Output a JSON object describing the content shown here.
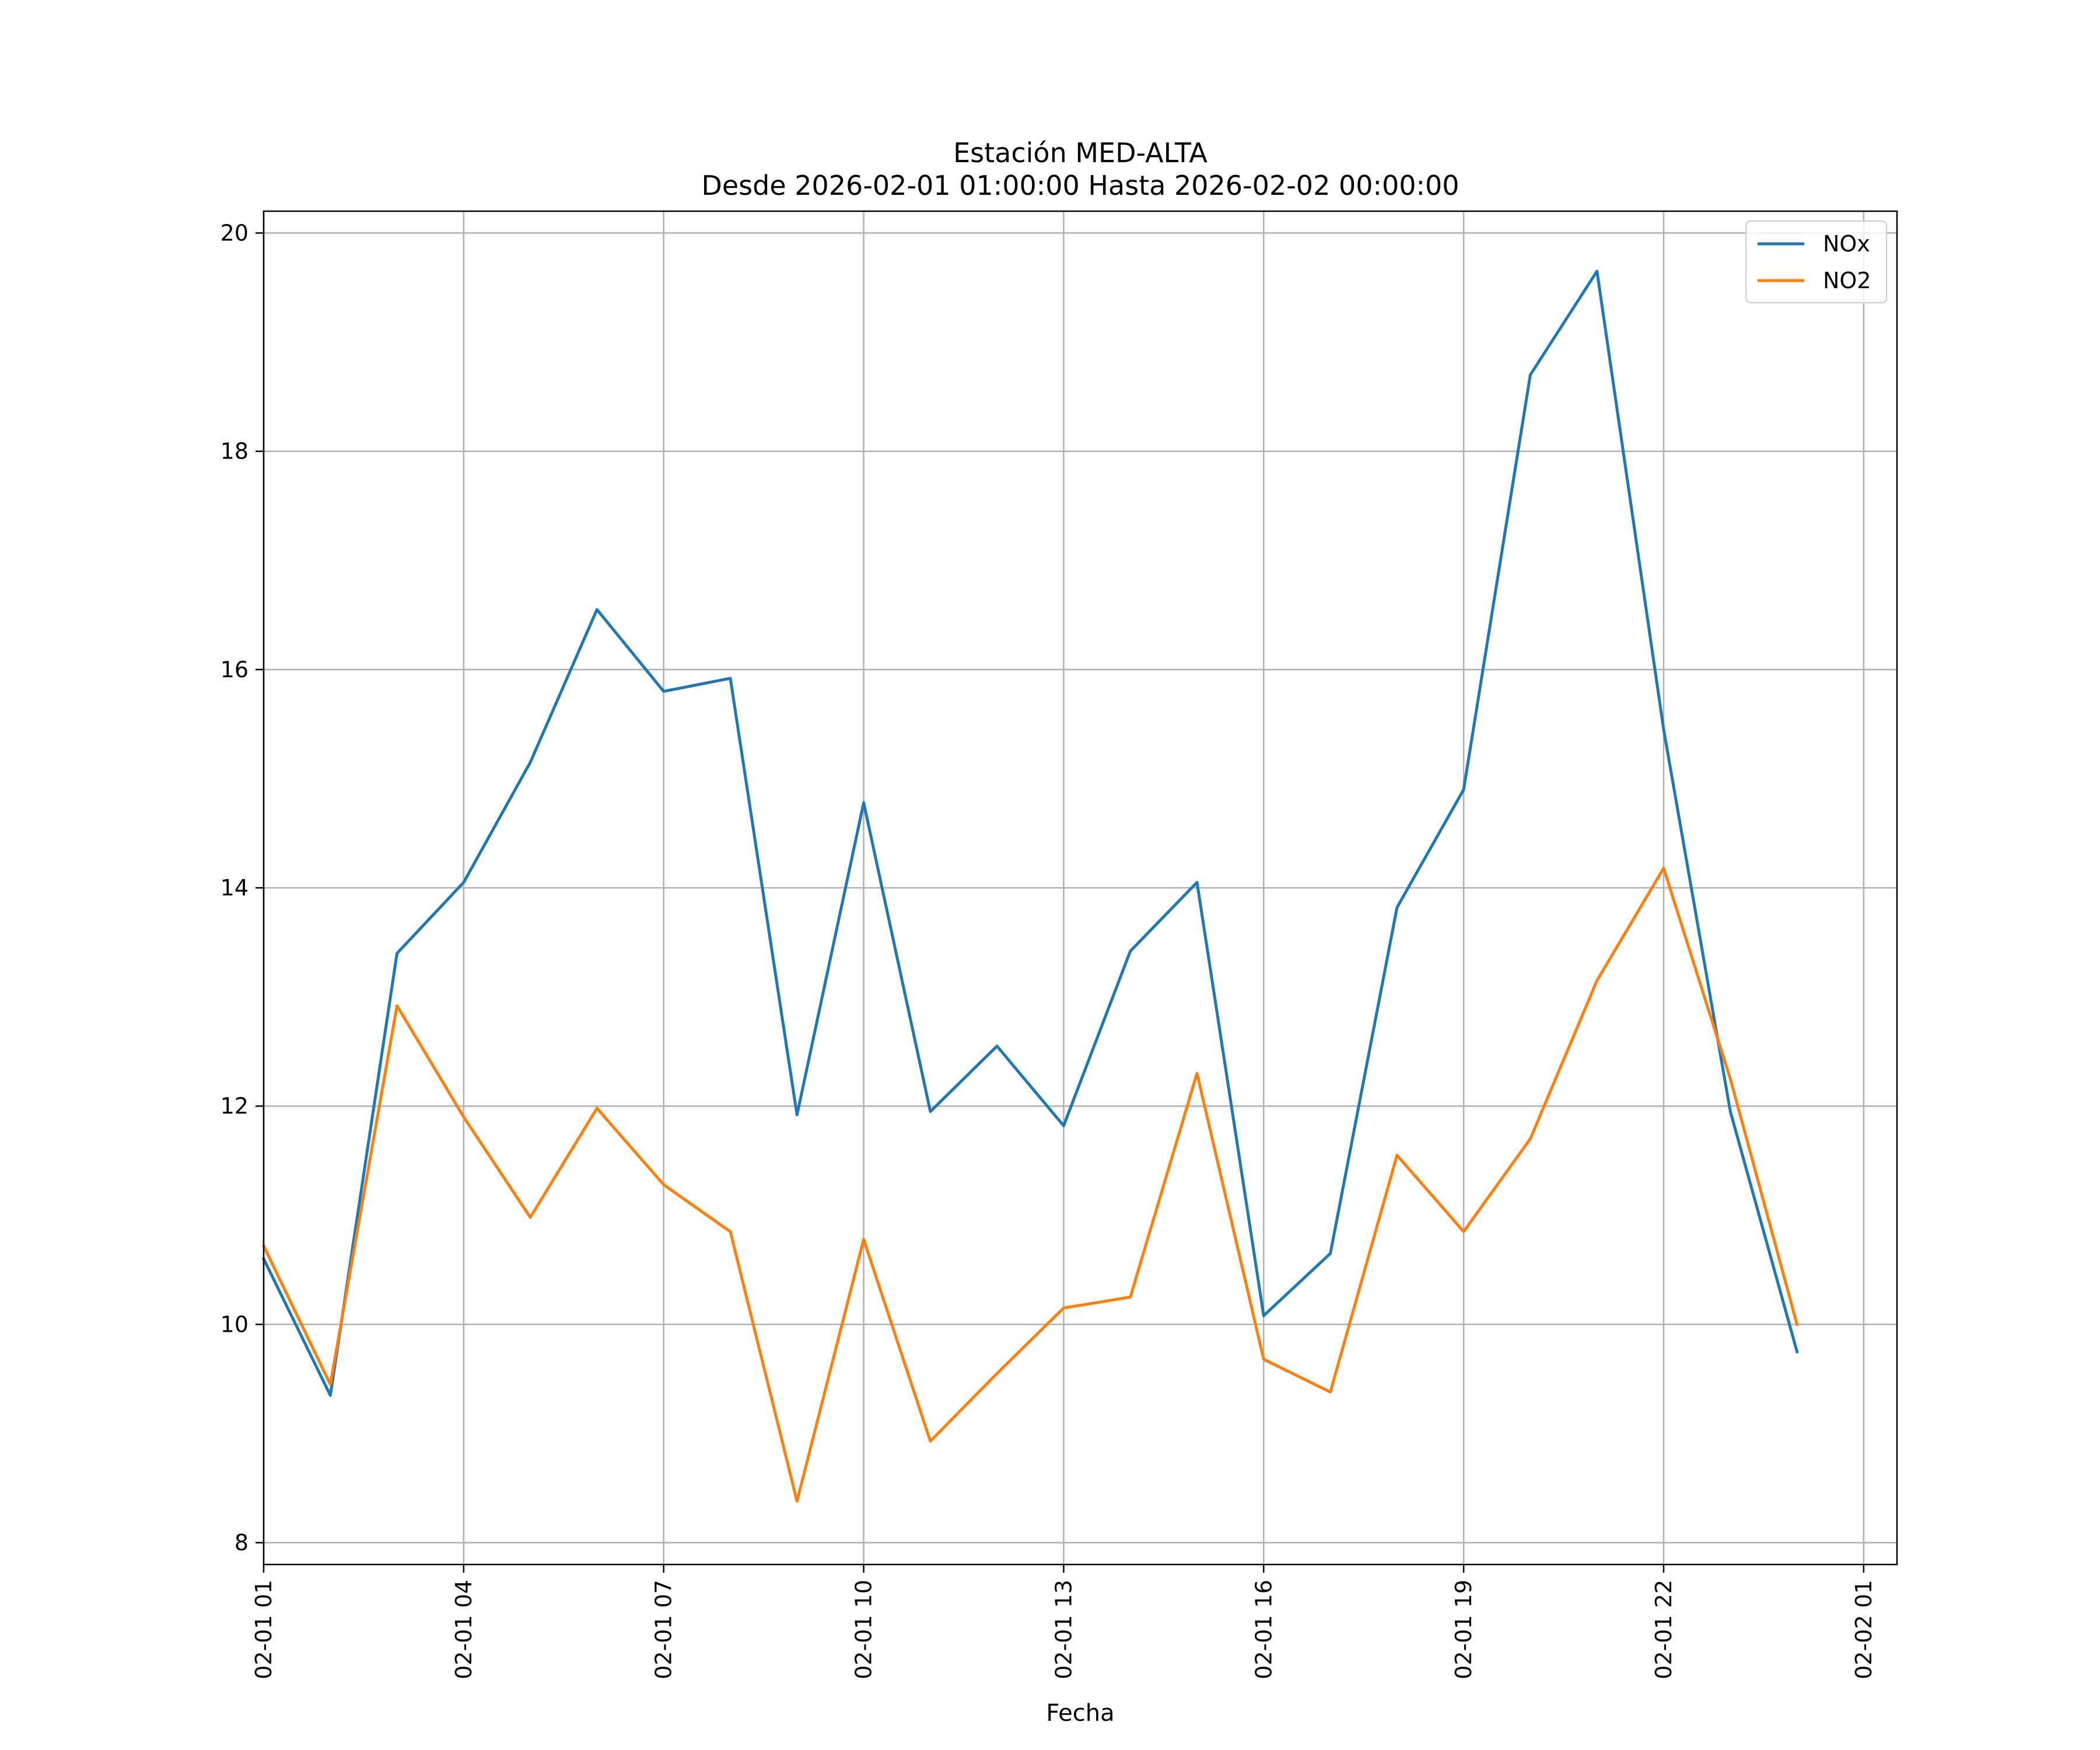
{
  "chart_data": {
    "type": "line",
    "title": [
      "Estación MED-ALTA",
      "Desde 2026-02-01 01:00:00 Hasta 2026-02-02 00:00:00"
    ],
    "xlabel": "Fecha",
    "ylabel": "",
    "xlim": [
      0.0,
      24.5
    ],
    "ylim": [
      7.8,
      20.2
    ],
    "grid": true,
    "legend_position": "top-right",
    "x_ticks": [
      {
        "x": 0,
        "label": "02-01 01"
      },
      {
        "x": 3,
        "label": "02-01 04"
      },
      {
        "x": 6,
        "label": "02-01 07"
      },
      {
        "x": 9,
        "label": "02-01 10"
      },
      {
        "x": 12,
        "label": "02-01 13"
      },
      {
        "x": 15,
        "label": "02-01 16"
      },
      {
        "x": 18,
        "label": "02-01 19"
      },
      {
        "x": 21,
        "label": "02-01 22"
      },
      {
        "x": 24,
        "label": "02-02 01"
      }
    ],
    "y_ticks": [
      8,
      10,
      12,
      14,
      16,
      18,
      20
    ],
    "x": [
      0,
      1,
      2,
      3,
      4,
      5,
      6,
      7,
      8,
      9,
      10,
      11,
      12,
      13,
      14,
      15,
      16,
      17,
      18,
      19,
      20,
      21,
      22,
      23
    ],
    "series": [
      {
        "name": "NOx",
        "color": "#1f77b4",
        "values": [
          10.6,
          9.35,
          13.4,
          14.05,
          15.15,
          16.55,
          15.8,
          15.92,
          11.92,
          14.78,
          11.95,
          12.55,
          11.82,
          13.42,
          14.05,
          10.08,
          10.65,
          13.82,
          14.9,
          18.7,
          19.65,
          15.45,
          11.95,
          9.75
        ]
      },
      {
        "name": "NO2",
        "color": "#ff7f0e",
        "values": [
          10.72,
          9.45,
          12.92,
          11.9,
          10.98,
          11.98,
          11.28,
          10.85,
          8.38,
          10.78,
          8.93,
          9.55,
          10.15,
          10.25,
          12.3,
          9.68,
          9.38,
          11.55,
          10.85,
          11.7,
          13.15,
          14.18,
          12.25,
          10.0
        ]
      }
    ]
  }
}
